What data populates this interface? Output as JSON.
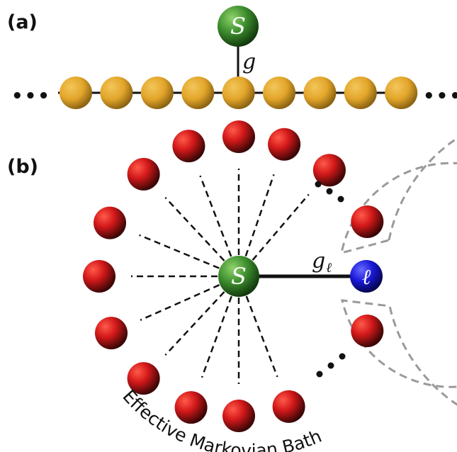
{
  "panel_a": {
    "label": "(a)",
    "system_label": "S",
    "coupling_label": "g",
    "ellipsis": "•••",
    "colors": {
      "site": "#e8ac2c",
      "system": "#3f8f2f",
      "chain_line": "#111111"
    }
  },
  "panel_b": {
    "label": "(b)",
    "system_label": "S",
    "mode_label": "ℓ",
    "coupling_label": "g",
    "coupling_subscript": "ℓ",
    "bath_label": "Effective Markovian Bath",
    "colors": {
      "bath_mode": "#d01a1a",
      "system": "#3f8f2f",
      "mode": "#1a1ad6",
      "boundary": "#9a9a9a"
    }
  }
}
